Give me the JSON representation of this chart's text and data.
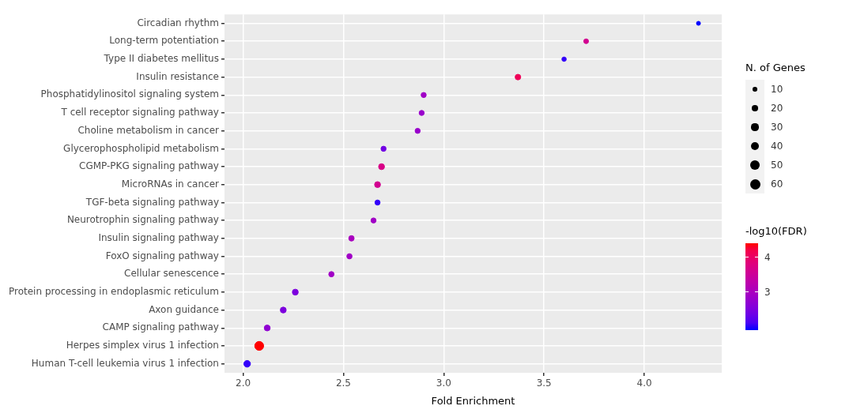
{
  "chart_data": {
    "type": "scatter",
    "orientation": "horizontal",
    "xlabel": "Fold Enrichment",
    "legend_title": "N. of Genes",
    "clabel": "-log10(FDR)",
    "categories": [
      "Circadian rhythm",
      "Long-term potentiation",
      "Type II diabetes mellitus",
      "Insulin resistance",
      "Phosphatidylinositol signaling system",
      "T cell receptor signaling pathway",
      "Choline metabolism in cancer",
      "Glycerophospholipid metabolism",
      "CGMP-PKG signaling pathway",
      "MicroRNAs in cancer",
      "TGF-beta signaling pathway",
      "Neurotrophin signaling pathway",
      "Insulin signaling pathway",
      "FoxO signaling pathway",
      "Cellular senescence",
      "Protein processing in endoplasmic reticulum",
      "Axon guidance",
      "CAMP signaling pathway",
      "Herpes simplex virus 1 infection",
      "Human T-cell leukemia virus 1 infection"
    ],
    "values": [
      4.27,
      3.71,
      3.6,
      3.37,
      2.9,
      2.89,
      2.87,
      2.7,
      2.69,
      2.67,
      2.67,
      2.65,
      2.54,
      2.53,
      2.44,
      2.26,
      2.2,
      2.12,
      2.08,
      2.02
    ],
    "sizes": [
      9,
      13,
      11,
      18,
      15,
      15,
      15,
      15,
      20,
      20,
      15,
      15,
      17,
      16,
      16,
      20,
      20,
      20,
      45,
      25
    ],
    "size_legend": [
      10,
      20,
      30,
      40,
      50,
      60
    ],
    "cvalues": [
      1.9,
      3.6,
      2.0,
      4.1,
      2.9,
      2.8,
      2.8,
      2.4,
      3.7,
      3.6,
      2.0,
      2.9,
      3.0,
      2.9,
      2.9,
      2.5,
      2.5,
      2.7,
      4.4,
      2.0
    ],
    "clim": [
      1.9,
      4.4
    ],
    "cticks": [
      3,
      4
    ],
    "xlim": [
      1.907,
      4.386
    ],
    "xticks": [
      {
        "value": 2,
        "label": "2.0"
      },
      2.5,
      {
        "value": 3,
        "label": "3.0"
      },
      3.5,
      {
        "value": 4,
        "label": "4.0"
      }
    ],
    "grid": true,
    "marker": "circle"
  }
}
